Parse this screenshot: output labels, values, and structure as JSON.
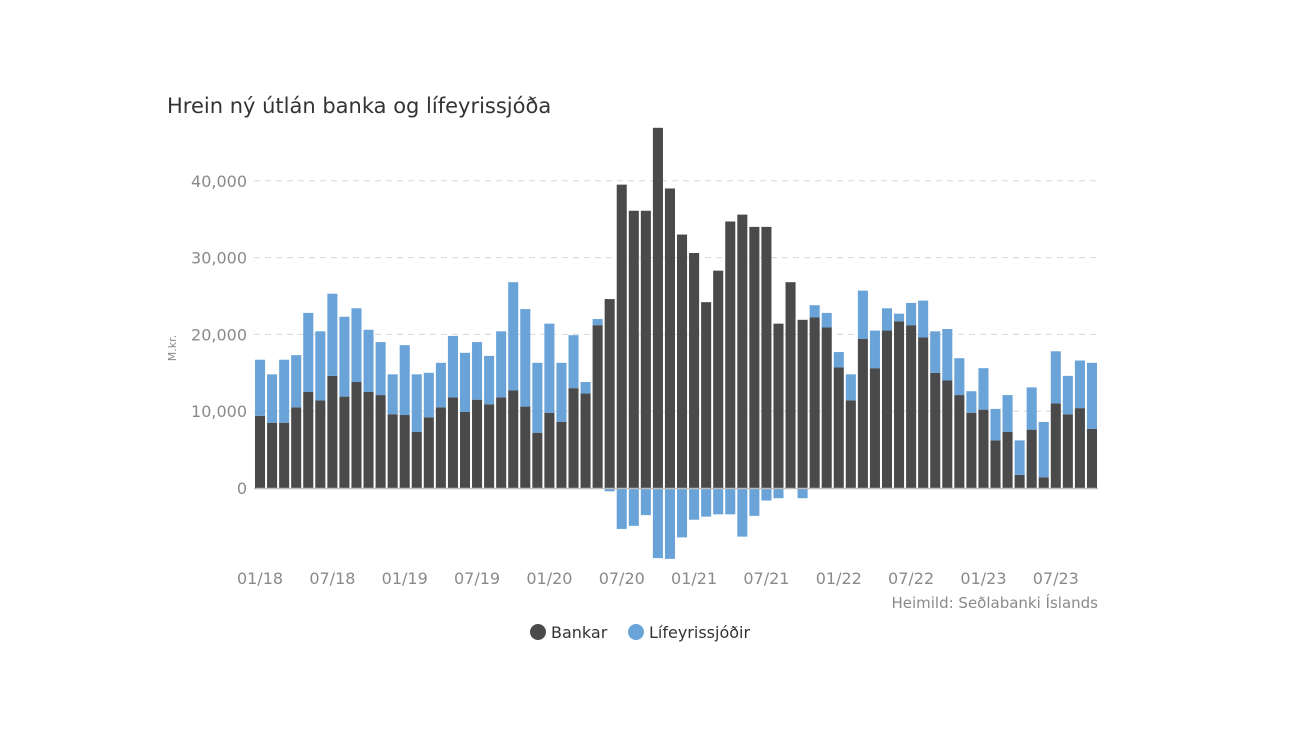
{
  "chart_data": {
    "type": "bar",
    "stacked": true,
    "title": "Hrein ný útlán banka og lífeyrissjóða",
    "ylabel": "M.kr.",
    "source": "Heimild: Seðlabanki Íslands",
    "ylim": [
      -10000,
      47000
    ],
    "yticks": [
      0,
      10000,
      20000,
      30000,
      40000
    ],
    "ytick_labels": [
      "0",
      "10,000",
      "20,000",
      "30,000",
      "40,000"
    ],
    "grid": "horizontal dashed",
    "legend": "bottom",
    "xtick_labels": [
      "01/18",
      "07/18",
      "01/19",
      "07/19",
      "01/20",
      "07/20",
      "01/21",
      "07/21",
      "01/22",
      "07/22",
      "01/23",
      "07/23"
    ],
    "categories": [
      "01/18",
      "02/18",
      "03/18",
      "04/18",
      "05/18",
      "06/18",
      "07/18",
      "08/18",
      "09/18",
      "10/18",
      "11/18",
      "12/18",
      "01/19",
      "02/19",
      "03/19",
      "04/19",
      "05/19",
      "06/19",
      "07/19",
      "08/19",
      "09/19",
      "10/19",
      "11/19",
      "12/19",
      "01/20",
      "02/20",
      "03/20",
      "04/20",
      "05/20",
      "06/20",
      "07/20",
      "08/20",
      "09/20",
      "10/20",
      "11/20",
      "12/20",
      "01/21",
      "02/21",
      "03/21",
      "04/21",
      "05/21",
      "06/21",
      "07/21",
      "08/21",
      "09/21",
      "10/21",
      "11/21",
      "12/21",
      "01/22",
      "02/22",
      "03/22",
      "04/22",
      "05/22",
      "06/22",
      "07/22",
      "08/22",
      "09/22",
      "10/22",
      "11/22",
      "12/22",
      "01/23",
      "02/23",
      "03/23",
      "04/23",
      "05/23",
      "06/23",
      "07/23",
      "08/23",
      "09/23",
      "10/23"
    ],
    "series": [
      {
        "name": "Bankar",
        "color": "#4a4a4a",
        "values": [
          9400,
          8500,
          8500,
          10500,
          12500,
          11400,
          14600,
          11900,
          13800,
          12500,
          12100,
          9600,
          9500,
          7300,
          9200,
          10500,
          11800,
          9900,
          11500,
          10900,
          11800,
          12700,
          10600,
          7200,
          9800,
          8600,
          13000,
          12300,
          21200,
          24600,
          39500,
          36100,
          36100,
          46900,
          39000,
          33000,
          30600,
          24200,
          28300,
          34700,
          35600,
          34000,
          34000,
          21400,
          26800,
          21900,
          22200,
          20900,
          15700,
          11400,
          19400,
          15600,
          20500,
          21700,
          21200,
          19600,
          15000,
          14000,
          12100,
          9800,
          10200,
          6200,
          7300,
          1700,
          7600,
          1400,
          11000,
          9600,
          10400,
          7700
        ]
      },
      {
        "name": "Lífeyrissjóðir",
        "color": "#6aa3d8",
        "values": [
          7300,
          6300,
          8200,
          6800,
          10300,
          9000,
          10700,
          10400,
          9600,
          8100,
          6900,
          5200,
          9100,
          7500,
          5800,
          5800,
          8000,
          7700,
          7500,
          6300,
          8600,
          14100,
          12700,
          9100,
          11600,
          7700,
          6900,
          1500,
          800,
          -300,
          -5200,
          -4800,
          -3400,
          -9000,
          -9100,
          -6300,
          -4000,
          -3600,
          -3300,
          -3300,
          -6200,
          -3500,
          -1500,
          -1200,
          0,
          -1200,
          1600,
          1900,
          2000,
          3400,
          6300,
          4900,
          2900,
          1000,
          2900,
          4800,
          5400,
          6700,
          4800,
          2800,
          5400,
          4100,
          4800,
          4500,
          5500,
          7200,
          6800,
          5000,
          6200,
          8600
        ]
      }
    ]
  }
}
